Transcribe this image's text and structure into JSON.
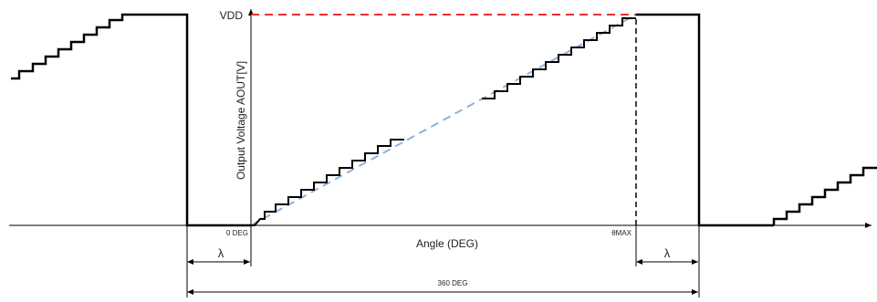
{
  "labels": {
    "vdd": "VDD",
    "y_axis": "Output Voltage AOUT[V]",
    "x_axis": "Angle (DEG)",
    "zero_deg": "0 DEG",
    "theta_max": "θMAX",
    "lambda_left": "λ",
    "lambda_right": "λ",
    "full_turn": "360 DEG"
  },
  "colors": {
    "output_trace": "#000000",
    "vdd_reference": "#e8312f",
    "ideal_ramp": "#8fb1dc",
    "axis": "#000000"
  }
}
